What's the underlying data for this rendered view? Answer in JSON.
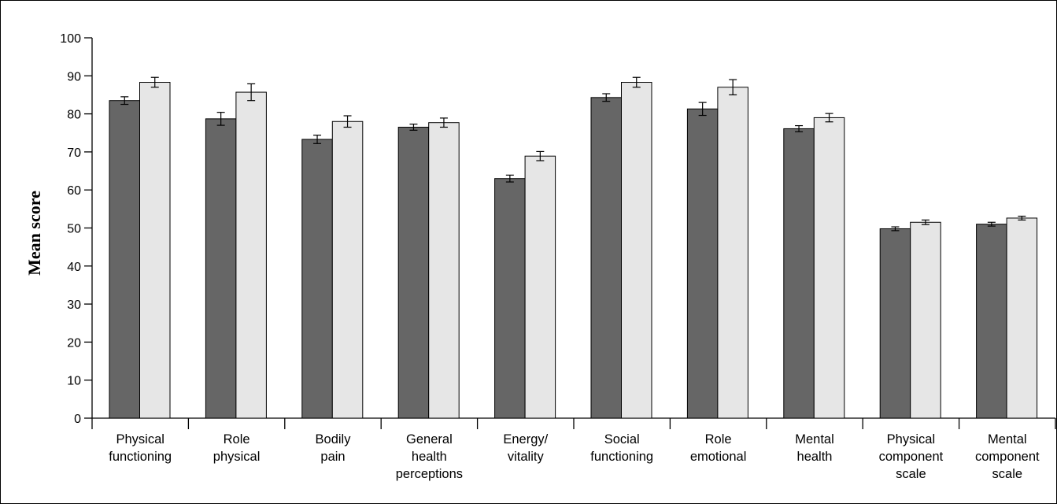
{
  "chart_data": {
    "type": "bar",
    "title": "",
    "xlabel": "",
    "ylabel": "Mean score",
    "ylim": [
      0,
      100
    ],
    "yticks": [
      0,
      10,
      20,
      30,
      40,
      50,
      60,
      70,
      80,
      90,
      100
    ],
    "grid": false,
    "legend": "none",
    "categories": [
      [
        "Physical",
        "functioning"
      ],
      [
        "Role",
        "physical"
      ],
      [
        "Bodily",
        "pain"
      ],
      [
        "General",
        "health",
        "perceptions"
      ],
      [
        "Energy/",
        "vitality"
      ],
      [
        "Social",
        "functioning"
      ],
      [
        "Role",
        "emotional"
      ],
      [
        "Mental",
        "health"
      ],
      [
        "Physical",
        "component",
        "scale"
      ],
      [
        "Mental",
        "component",
        "scale"
      ]
    ],
    "series": [
      {
        "color": "#666666",
        "values": [
          83.5,
          78.7,
          73.3,
          76.5,
          63.0,
          84.3,
          81.3,
          76.1,
          49.8,
          51.0
        ],
        "errors": [
          1.0,
          1.7,
          1.1,
          0.8,
          0.9,
          1.0,
          1.7,
          0.8,
          0.5,
          0.5
        ]
      },
      {
        "color": "#e6e6e6",
        "values": [
          88.3,
          85.7,
          78.0,
          77.7,
          68.9,
          88.3,
          87.0,
          79.0,
          51.5,
          52.6
        ],
        "errors": [
          1.3,
          2.2,
          1.5,
          1.2,
          1.2,
          1.3,
          2.0,
          1.1,
          0.6,
          0.5
        ]
      }
    ]
  }
}
